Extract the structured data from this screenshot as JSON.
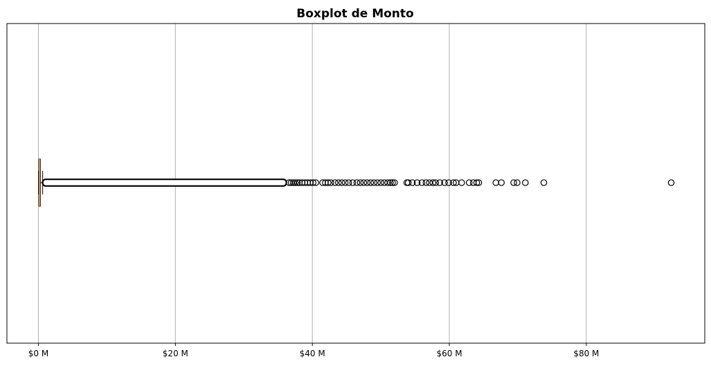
{
  "chart_data": {
    "type": "boxplot",
    "orientation": "horizontal",
    "title": "Boxplot de Monto",
    "xlabel": "",
    "ylabel": "",
    "xlim": [
      -4.6,
      97.3
    ],
    "x_ticks": [
      {
        "value": 0,
        "label": "$0 M"
      },
      {
        "value": 20,
        "label": "$20 M"
      },
      {
        "value": 40,
        "label": "$40 M"
      },
      {
        "value": 60,
        "label": "$60 M"
      },
      {
        "value": 80,
        "label": "$80 M"
      }
    ],
    "x_grid": true,
    "y_grid": false,
    "box": {
      "q1": 0.05,
      "median": 0.12,
      "q3": 0.28,
      "whisker_low": 0.0,
      "whisker_high": 0.62
    },
    "dense_outlier_range": [
      0.62,
      36.2
    ],
    "outliers": [
      36.6,
      36.9,
      37.2,
      37.5,
      37.8,
      38.1,
      38.5,
      38.9,
      39.3,
      39.7,
      40.1,
      40.5,
      41.5,
      41.9,
      42.3,
      42.7,
      43.3,
      43.8,
      44.3,
      44.8,
      45.3,
      45.9,
      46.5,
      47.0,
      47.5,
      48.0,
      48.5,
      49.0,
      49.5,
      50.0,
      50.5,
      51.0,
      51.4,
      51.7,
      52.0,
      53.8,
      54.0,
      54.6,
      55.3,
      56.0,
      56.6,
      57.1,
      57.6,
      58.0,
      58.6,
      59.3,
      59.9,
      60.6,
      61.0,
      61.8,
      62.9,
      63.5,
      64.0,
      64.3,
      66.8,
      67.6,
      69.4,
      69.9,
      71.1,
      73.8,
      92.4
    ],
    "colors": {
      "median_line": "#ff7f0e",
      "box_edge": "#000000",
      "grid": "#b0b0b0",
      "outlier_edge": "#000000"
    }
  }
}
